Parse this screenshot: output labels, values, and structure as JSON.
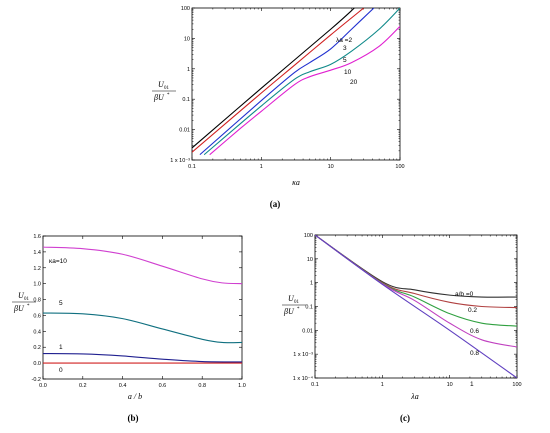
{
  "chart_data": [
    {
      "id": "a",
      "caption": "(a)",
      "type": "line",
      "xlabel": "κa",
      "ylabel": [
        "U",
        "01",
        "βU",
        "*"
      ],
      "xscale": "log",
      "yscale": "log",
      "xlim": [
        0.1,
        100
      ],
      "ylim": [
        0.001,
        100
      ],
      "xticks": [
        {
          "v": 0.1,
          "t": "0.1"
        },
        {
          "v": 1,
          "t": "1"
        },
        {
          "v": 10,
          "t": "10"
        },
        {
          "v": 100,
          "t": "100"
        }
      ],
      "yticks": [
        {
          "v": 0.001,
          "t": "1 x 10⁻³"
        },
        {
          "v": 0.01,
          "t": "0.01"
        },
        {
          "v": 0.1,
          "t": "0.1"
        },
        {
          "v": 1,
          "t": "1"
        },
        {
          "v": 10,
          "t": "10"
        },
        {
          "v": 100,
          "t": "100"
        }
      ],
      "series_labels": [
        "λa =2",
        "3",
        "5",
        "10",
        "20"
      ],
      "series": [
        {
          "color": "#000000",
          "points": [
            [
              0.1,
              0.0025
            ],
            [
              1,
              0.23
            ],
            [
              10,
              20
            ],
            [
              22,
              100
            ]
          ]
        },
        {
          "color": "#d02020",
          "points": [
            [
              0.1,
              0.0018
            ],
            [
              1,
              0.16
            ],
            [
              3,
              1.3
            ],
            [
              10,
              13
            ],
            [
              30,
              100
            ]
          ]
        },
        {
          "color": "#2030d0",
          "points": [
            [
              0.13,
              0.0015
            ],
            [
              1,
              0.09
            ],
            [
              3,
              0.75
            ],
            [
              5,
              1.6
            ],
            [
              10,
              4.5
            ],
            [
              20,
              20
            ],
            [
              42,
              100
            ]
          ]
        },
        {
          "color": "#108a8a",
          "points": [
            [
              0.15,
              0.0015
            ],
            [
              1,
              0.06
            ],
            [
              3,
              0.45
            ],
            [
              5,
              0.8
            ],
            [
              10,
              1.4
            ],
            [
              20,
              3.8
            ],
            [
              50,
              20
            ],
            [
              100,
              100
            ]
          ]
        },
        {
          "color": "#e020d0",
          "points": [
            [
              0.18,
              0.0015
            ],
            [
              0.5,
              0.011
            ],
            [
              1,
              0.04
            ],
            [
              3,
              0.3
            ],
            [
              5,
              0.55
            ],
            [
              10,
              0.9
            ],
            [
              20,
              1.6
            ],
            [
              50,
              5.5
            ],
            [
              100,
              25
            ]
          ]
        }
      ]
    },
    {
      "id": "b",
      "caption": "(b)",
      "type": "line",
      "xlabel": "a / b",
      "ylabel": [
        "U",
        "01",
        "βU",
        "*"
      ],
      "xscale": "linear",
      "yscale": "linear",
      "xlim": [
        0,
        1
      ],
      "ylim": [
        -0.2,
        1.6
      ],
      "xticks": [
        {
          "v": 0,
          "t": "0.0"
        },
        {
          "v": 0.2,
          "t": "0.2"
        },
        {
          "v": 0.4,
          "t": "0.4"
        },
        {
          "v": 0.6,
          "t": "0.6"
        },
        {
          "v": 0.8,
          "t": "0.8"
        },
        {
          "v": 1,
          "t": "1.0"
        }
      ],
      "yticks": [
        {
          "v": -0.2,
          "t": "-0.2"
        },
        {
          "v": 0,
          "t": "0.0"
        },
        {
          "v": 0.2,
          "t": "0.2"
        },
        {
          "v": 0.4,
          "t": "0.4"
        },
        {
          "v": 0.6,
          "t": "0.6"
        },
        {
          "v": 0.8,
          "t": "0.8"
        },
        {
          "v": 1,
          "t": "1.0"
        },
        {
          "v": 1.2,
          "t": "1.2"
        },
        {
          "v": 1.4,
          "t": "1.4"
        },
        {
          "v": 1.6,
          "t": "1.6"
        }
      ],
      "series_labels": [
        "κa=10",
        "5",
        "1",
        "0"
      ],
      "series": [
        {
          "color": "#d040d0",
          "points": [
            [
              0,
              1.46
            ],
            [
              0.2,
              1.44
            ],
            [
              0.4,
              1.37
            ],
            [
              0.6,
              1.22
            ],
            [
              0.8,
              1.06
            ],
            [
              0.9,
              1.01
            ],
            [
              1,
              1.0
            ]
          ]
        },
        {
          "color": "#107080",
          "points": [
            [
              0,
              0.63
            ],
            [
              0.2,
              0.62
            ],
            [
              0.4,
              0.56
            ],
            [
              0.6,
              0.43
            ],
            [
              0.8,
              0.3
            ],
            [
              0.9,
              0.26
            ],
            [
              1,
              0.26
            ]
          ]
        },
        {
          "color": "#202090",
          "points": [
            [
              0,
              0.12
            ],
            [
              0.2,
              0.115
            ],
            [
              0.4,
              0.09
            ],
            [
              0.6,
              0.05
            ],
            [
              0.8,
              0.02
            ],
            [
              1,
              0.015
            ]
          ]
        },
        {
          "color": "#d02020",
          "points": [
            [
              0,
              0.0
            ],
            [
              1,
              0.0
            ]
          ]
        }
      ]
    },
    {
      "id": "c",
      "caption": "(c)",
      "type": "line",
      "xlabel": "λa",
      "ylabel": [
        "U",
        "01",
        "βU",
        "*"
      ],
      "xscale": "log",
      "yscale": "log",
      "xlim": [
        0.1,
        100
      ],
      "ylim": [
        0.0001,
        100
      ],
      "xticks": [
        {
          "v": 0.1,
          "t": "0.1"
        },
        {
          "v": 1,
          "t": "1"
        },
        {
          "v": 10,
          "t": "10"
        },
        {
          "v": 100,
          "t": "100"
        }
      ],
      "yticks": [
        {
          "v": 0.0001,
          "t": "1 x 10⁻⁴"
        },
        {
          "v": 0.001,
          "t": "1 x 10⁻³"
        },
        {
          "v": 0.01,
          "t": "0.01"
        },
        {
          "v": 0.1,
          "t": "0.1"
        },
        {
          "v": 1,
          "t": "1"
        },
        {
          "v": 10,
          "t": "10"
        },
        {
          "v": 100,
          "t": "100"
        }
      ],
      "series_labels": [
        "a/b =0",
        "0.2",
        "0.6",
        "0.8",
        "1"
      ],
      "series": [
        {
          "color": "#303030",
          "points": [
            [
              0.1,
              100
            ],
            [
              1,
              1.1
            ],
            [
              3,
              0.5
            ],
            [
              10,
              0.3
            ],
            [
              30,
              0.25
            ],
            [
              100,
              0.25
            ]
          ]
        },
        {
          "color": "#b04040",
          "points": [
            [
              0.1,
              100
            ],
            [
              1,
              1.0
            ],
            [
              3,
              0.35
            ],
            [
              10,
              0.15
            ],
            [
              30,
              0.1
            ],
            [
              100,
              0.09
            ]
          ]
        },
        {
          "color": "#30a040",
          "points": [
            [
              0.1,
              100
            ],
            [
              1,
              0.95
            ],
            [
              3,
              0.25
            ],
            [
              10,
              0.05
            ],
            [
              30,
              0.02
            ],
            [
              100,
              0.015
            ]
          ]
        },
        {
          "color": "#c040c0",
          "points": [
            [
              0.1,
              100
            ],
            [
              1,
              0.9
            ],
            [
              3,
              0.18
            ],
            [
              10,
              0.02
            ],
            [
              30,
              0.004
            ],
            [
              100,
              0.002
            ]
          ]
        },
        {
          "color": "#6040c0",
          "points": [
            [
              0.1,
              100
            ],
            [
              1,
              0.85
            ],
            [
              10,
              0.01
            ],
            [
              100,
              0.0001
            ]
          ]
        }
      ]
    }
  ]
}
